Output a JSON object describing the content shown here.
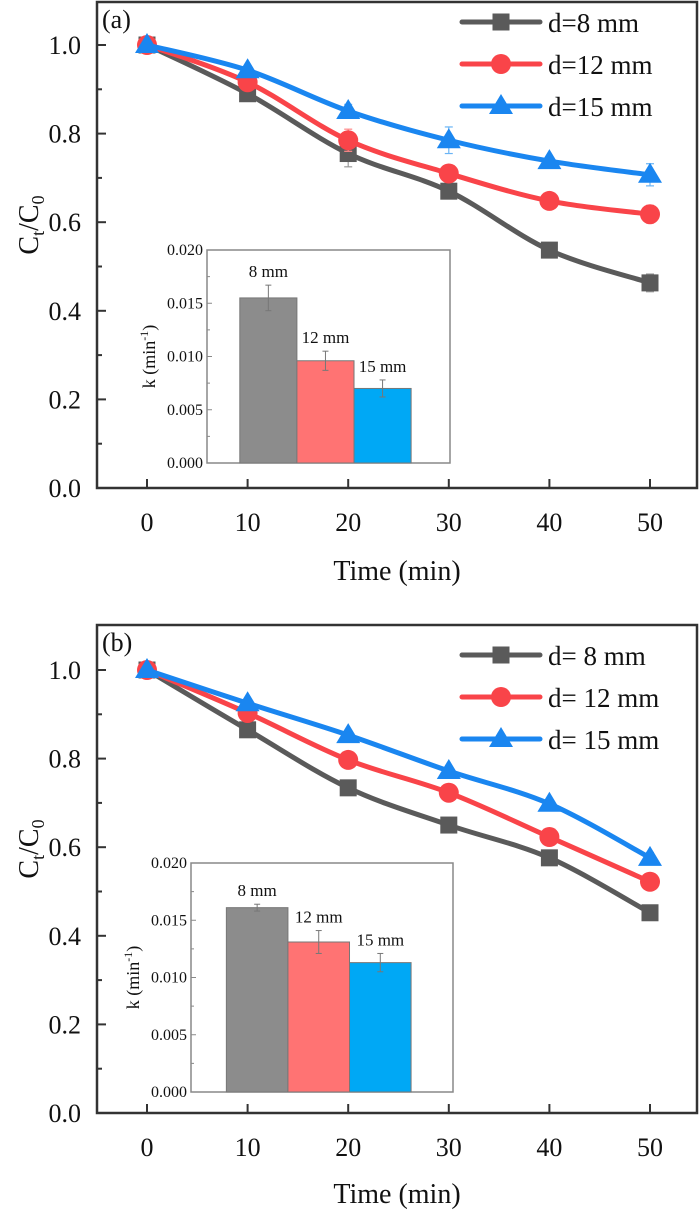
{
  "chart_data": [
    {
      "type": "line",
      "panel_label": "(a)",
      "title": "",
      "xlabel": "Time (min)",
      "ylabel": "Ct/C0",
      "ylabel_main": "C",
      "ylabel_sub1": "t",
      "ylabel_slash": "/C",
      "ylabel_sub2": "0",
      "xlim": [
        -5,
        55
      ],
      "ylim": [
        0,
        1.1
      ],
      "x_ticks": [
        0,
        10,
        20,
        30,
        40,
        50
      ],
      "x_tick_labels": [
        "0",
        "10",
        "20",
        "30",
        "40",
        "50"
      ],
      "y_ticks": [
        0.0,
        0.2,
        0.4,
        0.6,
        0.8,
        1.0
      ],
      "y_tick_labels": [
        "0.0",
        "0.2",
        "0.4",
        "0.6",
        "0.8",
        "1.0"
      ],
      "grid": false,
      "legend_position": "top-right",
      "x": [
        0,
        10,
        20,
        30,
        40,
        50
      ],
      "series": [
        {
          "name": "d=8  mm",
          "marker": "square",
          "color": "#5a5a5a",
          "values": [
            1.0,
            0.89,
            0.755,
            0.67,
            0.537,
            0.463
          ],
          "errors": [
            0.005,
            0.01,
            0.03,
            0.01,
            0.01,
            0.02
          ]
        },
        {
          "name": "d=12  mm",
          "marker": "circle",
          "color": "#f94449",
          "values": [
            1.0,
            0.916,
            0.785,
            0.71,
            0.648,
            0.618
          ],
          "errors": [
            0.005,
            0.01,
            0.025,
            0.01,
            0.01,
            0.02
          ]
        },
        {
          "name": "d=15 mm",
          "marker": "triangle",
          "color": "#1a86f0",
          "values": [
            1.0,
            0.943,
            0.851,
            0.785,
            0.738,
            0.707
          ],
          "errors": [
            0.005,
            0.01,
            0.015,
            0.03,
            0.01,
            0.025
          ]
        }
      ],
      "inset": {
        "type": "bar",
        "ylabel": "k (min-1)",
        "ylabel_text": "k (min",
        "ylabel_sup": "-1",
        "ylabel_close": ")",
        "ylim": [
          0,
          0.02
        ],
        "y_ticks": [
          0.0,
          0.005,
          0.01,
          0.015,
          0.02
        ],
        "y_tick_labels": [
          "0.000",
          "0.005",
          "0.010",
          "0.015",
          "0.020"
        ],
        "categories": [
          "8 mm",
          "12 mm",
          "15 mm"
        ],
        "values": [
          0.0155,
          0.0096,
          0.007
        ],
        "errors": [
          0.0012,
          0.0009,
          0.0008
        ],
        "colors": [
          "#8c8c8c",
          "#ff7373",
          "#00a8f5"
        ]
      }
    },
    {
      "type": "line",
      "panel_label": "(b)",
      "title": "",
      "xlabel": "Time (min)",
      "ylabel": "Ct/C0",
      "ylabel_main": "C",
      "ylabel_sub1": "t",
      "ylabel_slash": "/C",
      "ylabel_sub2": "0",
      "xlim": [
        -5,
        55
      ],
      "ylim": [
        0,
        1.1
      ],
      "x_ticks": [
        0,
        10,
        20,
        30,
        40,
        50
      ],
      "x_tick_labels": [
        "0",
        "10",
        "20",
        "30",
        "40",
        "50"
      ],
      "y_ticks": [
        0.0,
        0.2,
        0.4,
        0.6,
        0.8,
        1.0
      ],
      "y_tick_labels": [
        "0.0",
        "0.2",
        "0.4",
        "0.6",
        "0.8",
        "1.0"
      ],
      "grid": false,
      "legend_position": "top-right",
      "x": [
        0,
        10,
        20,
        30,
        40,
        50
      ],
      "series": [
        {
          "name": "d= 8 mm",
          "marker": "square",
          "color": "#5a5a5a",
          "values": [
            1.0,
            0.865,
            0.734,
            0.65,
            0.576,
            0.452
          ],
          "errors": [
            0.005,
            0.015,
            0.01,
            0.01,
            0.01,
            0.01
          ]
        },
        {
          "name": "d= 12 mm",
          "marker": "circle",
          "color": "#f94449",
          "values": [
            1.0,
            0.903,
            0.797,
            0.723,
            0.623,
            0.522
          ],
          "errors": [
            0.005,
            0.01,
            0.01,
            0.01,
            0.01,
            0.015
          ]
        },
        {
          "name": "d= 15 mm",
          "marker": "triangle",
          "color": "#1a86f0",
          "values": [
            1.0,
            0.925,
            0.853,
            0.772,
            0.698,
            0.576
          ],
          "errors": [
            0.005,
            0.01,
            0.01,
            0.01,
            0.01,
            0.012
          ]
        }
      ],
      "inset": {
        "type": "bar",
        "ylabel": "k (min-1)",
        "ylabel_text": "k (min",
        "ylabel_sup": "-1",
        "ylabel_close": ")",
        "ylim": [
          0,
          0.02
        ],
        "y_ticks": [
          0.0,
          0.005,
          0.01,
          0.015,
          0.02
        ],
        "y_tick_labels": [
          "0.000",
          "0.005",
          "0.010",
          "0.015",
          "0.020"
        ],
        "categories": [
          "8 mm",
          "12 mm",
          "15 mm"
        ],
        "values": [
          0.0161,
          0.0131,
          0.0113
        ],
        "errors": [
          0.0003,
          0.001,
          0.0008
        ],
        "colors": [
          "#8c8c8c",
          "#ff7373",
          "#00a8f5"
        ]
      }
    }
  ]
}
